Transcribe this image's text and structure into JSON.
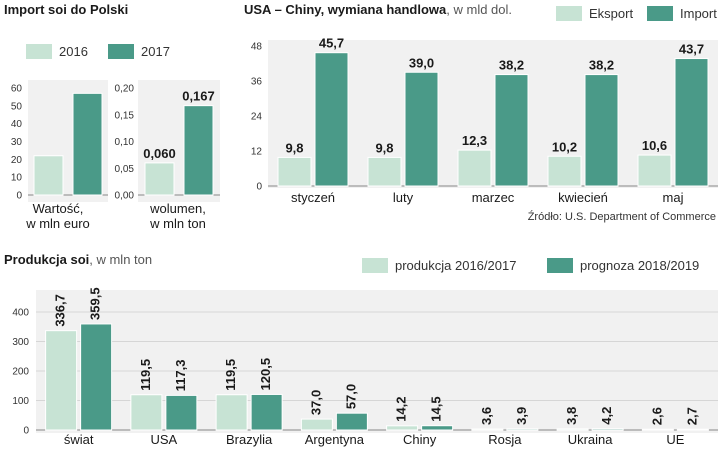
{
  "colors": {
    "light": "#c7e3d4",
    "dark": "#4a9a88",
    "panel": "#f1f1f1"
  },
  "chart_data": [
    {
      "id": "import",
      "type": "bar",
      "title": "Import soi do Polski",
      "legend": [
        "2016",
        "2017"
      ],
      "subcharts": [
        {
          "id": "wartosc",
          "label_lines": [
            "Wartość,",
            "w mln euro"
          ],
          "ticks": [
            "0",
            "10",
            "20",
            "30",
            "40",
            "50",
            "60"
          ],
          "ylim": [
            0,
            60
          ],
          "values": [
            22,
            57
          ],
          "labels": [
            null,
            null
          ]
        },
        {
          "id": "wolumen",
          "label_lines": [
            "wolumen,",
            "w mln ton"
          ],
          "ticks": [
            "0,00",
            "0,05",
            "0,10",
            "0,15",
            "0,20"
          ],
          "ylim": [
            0,
            0.2
          ],
          "values": [
            0.06,
            0.167
          ],
          "labels": [
            "0,060",
            "0,167"
          ]
        }
      ]
    },
    {
      "id": "usa",
      "type": "bar",
      "title": "USA – Chiny, wymiana handlowa",
      "subtitle": ", w mld dol.",
      "legend": [
        "Eksport",
        "Import"
      ],
      "source": "Źródło: U.S. Department of Commerce",
      "ticks": [
        "0",
        "12",
        "24",
        "36",
        "48"
      ],
      "ylim": [
        0,
        48
      ],
      "categories": [
        "styczeń",
        "luty",
        "marzec",
        "kwiecień",
        "maj"
      ],
      "series": [
        {
          "name": "Eksport",
          "values": [
            9.8,
            9.8,
            12.3,
            10.2,
            10.6
          ],
          "labels": [
            "9,8",
            "9,8",
            "12,3",
            "10,2",
            "10,6"
          ]
        },
        {
          "name": "Import",
          "values": [
            45.7,
            39.0,
            38.2,
            38.2,
            43.7
          ],
          "labels": [
            "45,7",
            "39,0",
            "38,2",
            "38,2",
            "43,7"
          ]
        }
      ]
    },
    {
      "id": "produkcja",
      "type": "bar",
      "title": "Produkcja soi",
      "subtitle": ", w mln ton",
      "legend": [
        "produkcja 2016/2017",
        "prognoza 2018/2019"
      ],
      "ticks": [
        "0",
        "100",
        "200",
        "300",
        "400"
      ],
      "ylim": [
        0,
        400
      ],
      "categories": [
        "świat",
        "USA",
        "Brazylia",
        "Argentyna",
        "Chiny",
        "Rosja",
        "Ukraina",
        "UE"
      ],
      "series": [
        {
          "name": "produkcja 2016/2017",
          "values": [
            336.7,
            119.5,
            119.5,
            37.0,
            14.2,
            3.6,
            3.8,
            2.6
          ],
          "labels": [
            "336,7",
            "119,5",
            "119,5",
            "37,0",
            "14,2",
            "3,6",
            "3,8",
            "2,6"
          ]
        },
        {
          "name": "prognoza 2018/2019",
          "values": [
            359.5,
            117.3,
            120.5,
            57.0,
            14.5,
            3.9,
            4.2,
            2.7
          ],
          "labels": [
            "359,5",
            "117,3",
            "120,5",
            "57,0",
            "14,5",
            "3,9",
            "4,2",
            "2,7"
          ]
        }
      ]
    }
  ]
}
